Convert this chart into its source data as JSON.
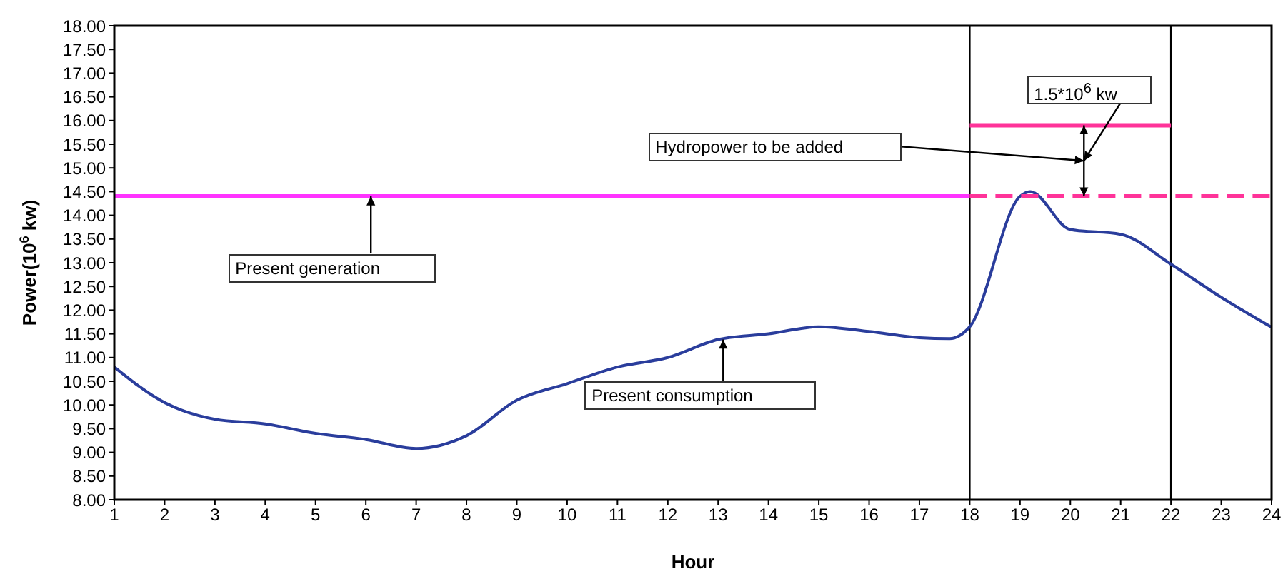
{
  "chart_data": {
    "type": "line",
    "xlabel": "Hour",
    "ylabel": "Power(10$^{6}$ kw)",
    "xlim": [
      1,
      24
    ],
    "xticks": [
      1,
      2,
      3,
      4,
      5,
      6,
      7,
      8,
      9,
      10,
      11,
      12,
      13,
      14,
      15,
      16,
      17,
      18,
      19,
      20,
      21,
      22,
      23,
      24
    ],
    "ylim": [
      8,
      18
    ],
    "yticks": [
      {
        "value": 8,
        "label": "8.00"
      },
      {
        "value": 8.5,
        "label": "8.50"
      },
      {
        "value": 9,
        "label": "9.00"
      },
      {
        "value": 9.5,
        "label": "9.50"
      },
      {
        "value": 10,
        "label": "10.00"
      },
      {
        "value": 10.5,
        "label": "10.50"
      },
      {
        "value": 11,
        "label": "11.00"
      },
      {
        "value": 11.5,
        "label": "11.50"
      },
      {
        "value": 12,
        "label": "12.00"
      },
      {
        "value": 12.5,
        "label": "12.50"
      },
      {
        "value": 13,
        "label": "13.00"
      },
      {
        "value": 13.5,
        "label": "13.50"
      },
      {
        "value": 14,
        "label": "14.00"
      },
      {
        "value": 14.5,
        "label": "14.50"
      },
      {
        "value": 15,
        "label": "15.00"
      },
      {
        "value": 15.5,
        "label": "15.50"
      },
      {
        "value": 16,
        "label": "16.00"
      },
      {
        "value": 16.5,
        "label": "16.50"
      },
      {
        "value": 17,
        "label": "17.00"
      },
      {
        "value": 17.5,
        "label": "17.50"
      },
      {
        "value": 18,
        "label": "18.00"
      }
    ],
    "grid": false,
    "marker": "none",
    "series": [
      {
        "color": "#2a3d9c",
        "x": [
          1,
          2,
          3,
          4,
          5,
          6,
          7,
          8,
          9,
          10,
          11,
          12,
          13,
          14,
          15,
          16,
          17,
          17.6,
          18,
          19,
          19.2,
          20,
          21,
          22,
          23,
          24
        ],
        "values": [
          10.8,
          10.05,
          9.7,
          9.6,
          9.4,
          9.27,
          9.08,
          9.35,
          10.1,
          10.45,
          10.8,
          11.0,
          11.38,
          11.5,
          11.65,
          11.55,
          11.42,
          11.4,
          11.65,
          14.4,
          14.5,
          13.7,
          13.6,
          12.97,
          12.27,
          11.64
        ]
      },
      {
        "color": "#ff33ff",
        "x": [
          1,
          18
        ],
        "values": [
          14.4,
          14.4
        ]
      },
      {
        "color": "#ff3399",
        "x": [
          18,
          24
        ],
        "values": [
          14.4,
          14.4
        ],
        "line_style": "dashed"
      },
      {
        "color": "#ff3399",
        "x": [
          18,
          22
        ],
        "values": [
          15.9,
          15.9
        ]
      }
    ],
    "ref_lines": [
      {
        "axis": "x",
        "value": 18,
        "color": "#000000"
      },
      {
        "axis": "x",
        "value": 22,
        "color": "#000000"
      }
    ],
    "annotations": [
      {
        "text": "Present generation",
        "x": 6.1,
        "y": 14.4
      },
      {
        "text": "Present consumption",
        "x": 13.1,
        "y": 11.38
      },
      "Hydropower to be added",
      {
        "text": "1.5*10$^{6}$ kw",
        "x": 20.27,
        "y": 15.9
      }
    ]
  }
}
